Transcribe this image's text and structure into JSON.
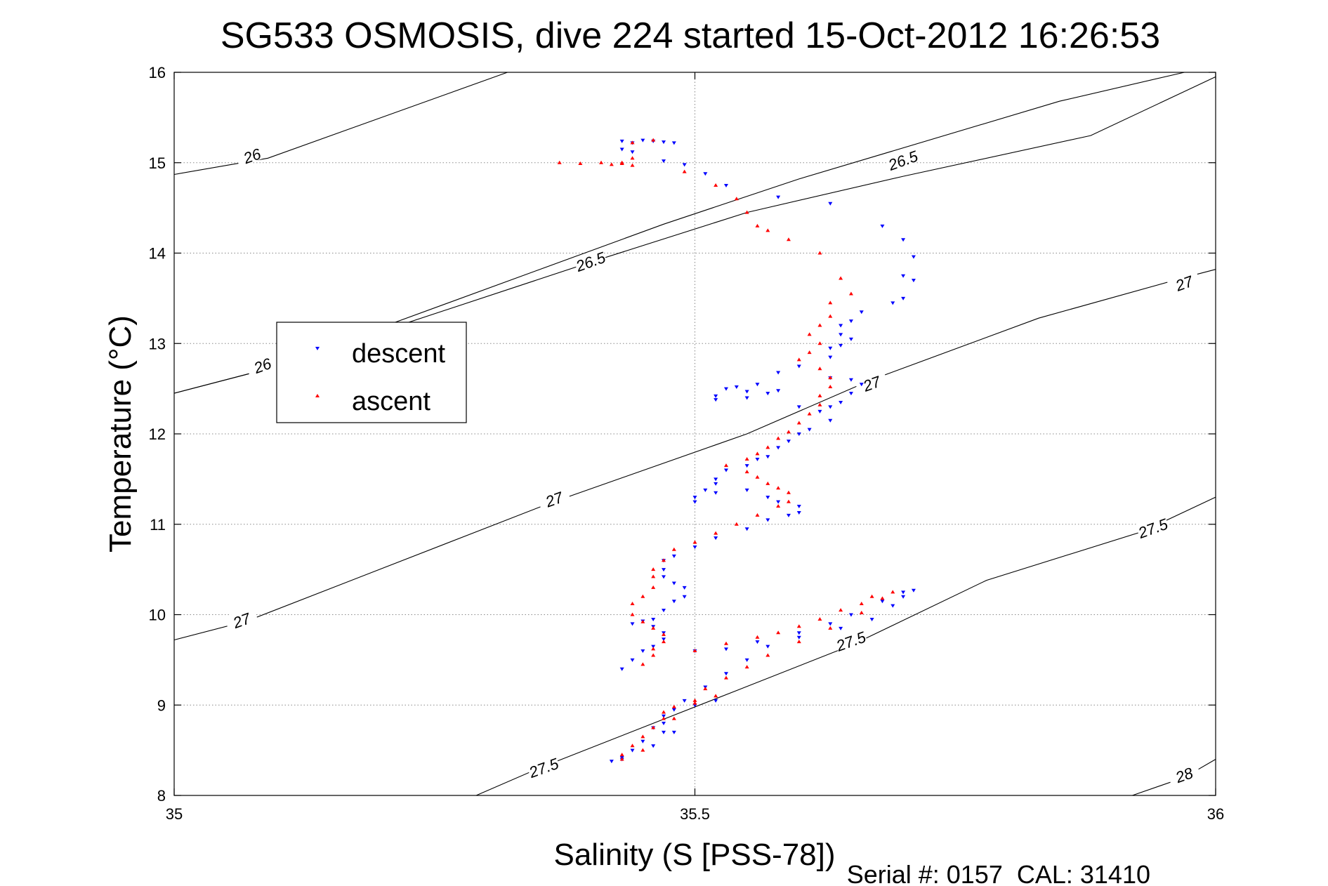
{
  "chart_data": {
    "type": "scatter",
    "title": "SG533 OSMOSIS, dive 224 started 15-Oct-2012 16:26:53",
    "xlabel": "Salinity (S [PSS-78])",
    "ylabel": "Temperature (°C)",
    "xlim": [
      35,
      36
    ],
    "ylim": [
      8,
      16
    ],
    "xticks": [
      35,
      35.5,
      36
    ],
    "xtick_labels": [
      "35",
      "35.5",
      "36"
    ],
    "yticks": [
      8,
      9,
      10,
      11,
      12,
      13,
      14,
      15,
      16
    ],
    "ytick_labels": [
      "8",
      "9",
      "10",
      "11",
      "12",
      "13",
      "14",
      "15",
      "16"
    ],
    "grid": true,
    "legend_position": "left",
    "footer": "Serial #: 0157  CAL: 31410",
    "density_contours": [
      {
        "level": "26",
        "points": [
          [
            35.0,
            14.87
          ],
          [
            35.09,
            15.05
          ],
          [
            35.32,
            16.0
          ]
        ]
      },
      {
        "level": "26",
        "points": [
          [
            35.0,
            12.45
          ],
          [
            35.09,
            12.72
          ],
          [
            35.47,
            14.32
          ],
          [
            35.6,
            14.82
          ],
          [
            35.85,
            15.68
          ],
          [
            35.97,
            16.0
          ]
        ]
      },
      {
        "level": "26.5",
        "points": [
          [
            35.0,
            12.45
          ],
          [
            35.09,
            12.72
          ],
          [
            35.4,
            13.9
          ],
          [
            35.55,
            14.45
          ],
          [
            35.7,
            14.85
          ],
          [
            35.88,
            15.3
          ],
          [
            36.0,
            15.95
          ]
        ]
      },
      {
        "level": "27",
        "points": [
          [
            35.0,
            9.72
          ],
          [
            35.07,
            9.93
          ],
          [
            35.36,
            11.23
          ],
          [
            35.55,
            12.0
          ],
          [
            35.67,
            12.6
          ],
          [
            35.83,
            13.28
          ],
          [
            35.97,
            13.73
          ],
          [
            36.0,
            13.82
          ]
        ]
      },
      {
        "level": "27.5",
        "points": [
          [
            35.29,
            8.0
          ],
          [
            35.35,
            8.3
          ],
          [
            35.54,
            9.16
          ],
          [
            35.65,
            9.66
          ],
          [
            35.78,
            10.38
          ],
          [
            35.93,
            10.92
          ],
          [
            36.0,
            11.3
          ]
        ]
      },
      {
        "level": "28",
        "points": [
          [
            35.92,
            8.0
          ],
          [
            35.97,
            8.2
          ],
          [
            36.0,
            8.4
          ]
        ]
      }
    ],
    "contour_labels": [
      {
        "text": "26",
        "x": 35.075,
        "y": 15.07
      },
      {
        "text": "26",
        "x": 35.085,
        "y": 12.75
      },
      {
        "text": "26.5",
        "x": 35.4,
        "y": 13.9
      },
      {
        "text": "26.5",
        "x": 35.7,
        "y": 15.02
      },
      {
        "text": "27",
        "x": 35.065,
        "y": 9.93
      },
      {
        "text": "27",
        "x": 35.365,
        "y": 11.27
      },
      {
        "text": "27",
        "x": 35.67,
        "y": 12.55
      },
      {
        "text": "27",
        "x": 35.97,
        "y": 13.66
      },
      {
        "text": "27.5",
        "x": 35.355,
        "y": 8.3
      },
      {
        "text": "27.5",
        "x": 35.65,
        "y": 9.7
      },
      {
        "text": "27.5",
        "x": 35.94,
        "y": 10.95
      },
      {
        "text": "28",
        "x": 35.97,
        "y": 8.22
      }
    ],
    "series": [
      {
        "name": "descent",
        "color": "#0000ff",
        "marker": "v",
        "points": [
          [
            35.43,
            15.24
          ],
          [
            35.45,
            15.25
          ],
          [
            35.46,
            15.24
          ],
          [
            35.47,
            15.23
          ],
          [
            35.44,
            15.22
          ],
          [
            35.43,
            15.15
          ],
          [
            35.44,
            15.12
          ],
          [
            35.48,
            15.22
          ],
          [
            35.47,
            15.02
          ],
          [
            35.49,
            14.98
          ],
          [
            35.51,
            14.88
          ],
          [
            35.53,
            14.75
          ],
          [
            35.58,
            14.62
          ],
          [
            35.63,
            14.55
          ],
          [
            35.68,
            14.3
          ],
          [
            35.7,
            14.15
          ],
          [
            35.71,
            13.96
          ],
          [
            35.7,
            13.75
          ],
          [
            35.71,
            13.7
          ],
          [
            35.7,
            13.5
          ],
          [
            35.69,
            13.45
          ],
          [
            35.66,
            13.35
          ],
          [
            35.65,
            13.25
          ],
          [
            35.64,
            13.2
          ],
          [
            35.64,
            13.1
          ],
          [
            35.65,
            13.05
          ],
          [
            35.64,
            12.98
          ],
          [
            35.63,
            12.95
          ],
          [
            35.63,
            12.85
          ],
          [
            35.6,
            12.75
          ],
          [
            35.58,
            12.68
          ],
          [
            35.63,
            12.62
          ],
          [
            35.65,
            12.6
          ],
          [
            35.66,
            12.55
          ],
          [
            35.65,
            12.45
          ],
          [
            35.64,
            12.35
          ],
          [
            35.63,
            12.3
          ],
          [
            35.62,
            12.25
          ],
          [
            35.6,
            12.3
          ],
          [
            35.57,
            12.45
          ],
          [
            35.55,
            12.4
          ],
          [
            35.52,
            12.38
          ],
          [
            35.55,
            12.47
          ],
          [
            35.53,
            12.5
          ],
          [
            35.52,
            12.42
          ],
          [
            35.54,
            12.52
          ],
          [
            35.56,
            12.55
          ],
          [
            35.58,
            12.48
          ],
          [
            35.63,
            12.15
          ],
          [
            35.61,
            12.05
          ],
          [
            35.6,
            12.0
          ],
          [
            35.59,
            11.92
          ],
          [
            35.58,
            11.85
          ],
          [
            35.57,
            11.75
          ],
          [
            35.56,
            11.72
          ],
          [
            35.55,
            11.65
          ],
          [
            35.53,
            11.6
          ],
          [
            35.52,
            11.5
          ],
          [
            35.52,
            11.45
          ],
          [
            35.51,
            11.38
          ],
          [
            35.5,
            11.3
          ],
          [
            35.5,
            11.25
          ],
          [
            35.52,
            11.35
          ],
          [
            35.55,
            11.38
          ],
          [
            35.57,
            11.3
          ],
          [
            35.58,
            11.25
          ],
          [
            35.6,
            11.2
          ],
          [
            35.6,
            11.13
          ],
          [
            35.59,
            11.1
          ],
          [
            35.57,
            11.05
          ],
          [
            35.55,
            10.95
          ],
          [
            35.52,
            10.85
          ],
          [
            35.5,
            10.75
          ],
          [
            35.48,
            10.65
          ],
          [
            35.47,
            10.6
          ],
          [
            35.47,
            10.5
          ],
          [
            35.47,
            10.42
          ],
          [
            35.48,
            10.35
          ],
          [
            35.49,
            10.3
          ],
          [
            35.49,
            10.2
          ],
          [
            35.48,
            10.15
          ],
          [
            35.47,
            10.05
          ],
          [
            35.46,
            9.95
          ],
          [
            35.45,
            9.93
          ],
          [
            35.44,
            9.9
          ],
          [
            35.46,
            9.87
          ],
          [
            35.47,
            9.8
          ],
          [
            35.47,
            9.73
          ],
          [
            35.46,
            9.65
          ],
          [
            35.45,
            9.6
          ],
          [
            35.44,
            9.5
          ],
          [
            35.43,
            9.4
          ],
          [
            35.5,
            9.6
          ],
          [
            35.53,
            9.62
          ],
          [
            35.56,
            9.7
          ],
          [
            35.6,
            9.75
          ],
          [
            35.64,
            9.85
          ],
          [
            35.67,
            9.95
          ],
          [
            35.69,
            10.1
          ],
          [
            35.7,
            10.2
          ],
          [
            35.71,
            10.27
          ],
          [
            35.7,
            10.25
          ],
          [
            35.68,
            10.15
          ],
          [
            35.65,
            10.0
          ],
          [
            35.63,
            9.9
          ],
          [
            35.6,
            9.8
          ],
          [
            35.57,
            9.65
          ],
          [
            35.55,
            9.5
          ],
          [
            35.53,
            9.35
          ],
          [
            35.51,
            9.2
          ],
          [
            35.49,
            9.05
          ],
          [
            35.48,
            8.95
          ],
          [
            35.47,
            8.88
          ],
          [
            35.47,
            8.8
          ],
          [
            35.46,
            8.75
          ],
          [
            35.47,
            8.7
          ],
          [
            35.45,
            8.6
          ],
          [
            35.44,
            8.5
          ],
          [
            35.43,
            8.4
          ],
          [
            35.42,
            8.38
          ],
          [
            35.43,
            8.42
          ],
          [
            35.46,
            8.55
          ],
          [
            35.48,
            8.7
          ],
          [
            35.5,
            9.0
          ],
          [
            35.52,
            9.05
          ]
        ]
      },
      {
        "name": "ascent",
        "color": "#ff0000",
        "marker": "^",
        "points": [
          [
            35.37,
            15.0
          ],
          [
            35.39,
            14.99
          ],
          [
            35.41,
            15.0
          ],
          [
            35.42,
            14.98
          ],
          [
            35.43,
            14.99
          ],
          [
            35.44,
            14.97
          ],
          [
            35.44,
            15.05
          ],
          [
            35.44,
            15.22
          ],
          [
            35.46,
            15.25
          ],
          [
            35.43,
            15.0
          ],
          [
            35.49,
            14.9
          ],
          [
            35.52,
            14.75
          ],
          [
            35.54,
            14.6
          ],
          [
            35.55,
            14.45
          ],
          [
            35.56,
            14.3
          ],
          [
            35.57,
            14.25
          ],
          [
            35.59,
            14.15
          ],
          [
            35.62,
            14.0
          ],
          [
            35.64,
            13.72
          ],
          [
            35.65,
            13.55
          ],
          [
            35.63,
            13.45
          ],
          [
            35.63,
            13.3
          ],
          [
            35.62,
            13.2
          ],
          [
            35.61,
            13.1
          ],
          [
            35.62,
            13.0
          ],
          [
            35.61,
            12.9
          ],
          [
            35.6,
            12.82
          ],
          [
            35.62,
            12.72
          ],
          [
            35.63,
            12.62
          ],
          [
            35.63,
            12.52
          ],
          [
            35.62,
            12.42
          ],
          [
            35.62,
            12.32
          ],
          [
            35.61,
            12.22
          ],
          [
            35.6,
            12.12
          ],
          [
            35.59,
            12.02
          ],
          [
            35.58,
            11.95
          ],
          [
            35.57,
            11.85
          ],
          [
            35.56,
            11.78
          ],
          [
            35.55,
            11.72
          ],
          [
            35.53,
            11.65
          ],
          [
            35.55,
            11.58
          ],
          [
            35.56,
            11.52
          ],
          [
            35.57,
            11.45
          ],
          [
            35.58,
            11.4
          ],
          [
            35.59,
            11.35
          ],
          [
            35.59,
            11.25
          ],
          [
            35.58,
            11.2
          ],
          [
            35.56,
            11.1
          ],
          [
            35.54,
            11.0
          ],
          [
            35.52,
            10.9
          ],
          [
            35.5,
            10.8
          ],
          [
            35.48,
            10.72
          ],
          [
            35.47,
            10.6
          ],
          [
            35.46,
            10.5
          ],
          [
            35.46,
            10.42
          ],
          [
            35.46,
            10.3
          ],
          [
            35.45,
            10.2
          ],
          [
            35.44,
            10.12
          ],
          [
            35.44,
            10.0
          ],
          [
            35.45,
            9.92
          ],
          [
            35.46,
            9.85
          ],
          [
            35.47,
            9.78
          ],
          [
            35.47,
            9.7
          ],
          [
            35.46,
            9.62
          ],
          [
            35.46,
            9.55
          ],
          [
            35.45,
            9.45
          ],
          [
            35.5,
            9.6
          ],
          [
            35.53,
            9.68
          ],
          [
            35.56,
            9.75
          ],
          [
            35.58,
            9.8
          ],
          [
            35.6,
            9.87
          ],
          [
            35.62,
            9.95
          ],
          [
            35.64,
            10.05
          ],
          [
            35.66,
            10.12
          ],
          [
            35.67,
            10.2
          ],
          [
            35.69,
            10.25
          ],
          [
            35.68,
            10.18
          ],
          [
            35.66,
            10.02
          ],
          [
            35.63,
            9.85
          ],
          [
            35.6,
            9.7
          ],
          [
            35.57,
            9.55
          ],
          [
            35.55,
            9.42
          ],
          [
            35.53,
            9.3
          ],
          [
            35.51,
            9.18
          ],
          [
            35.5,
            9.05
          ],
          [
            35.48,
            8.98
          ],
          [
            35.47,
            8.92
          ],
          [
            35.47,
            8.85
          ],
          [
            35.46,
            8.75
          ],
          [
            35.45,
            8.65
          ],
          [
            35.44,
            8.55
          ],
          [
            35.43,
            8.45
          ],
          [
            35.43,
            8.4
          ],
          [
            35.45,
            8.5
          ],
          [
            35.48,
            8.85
          ],
          [
            35.5,
            9.02
          ],
          [
            35.52,
            9.1
          ]
        ]
      }
    ]
  }
}
